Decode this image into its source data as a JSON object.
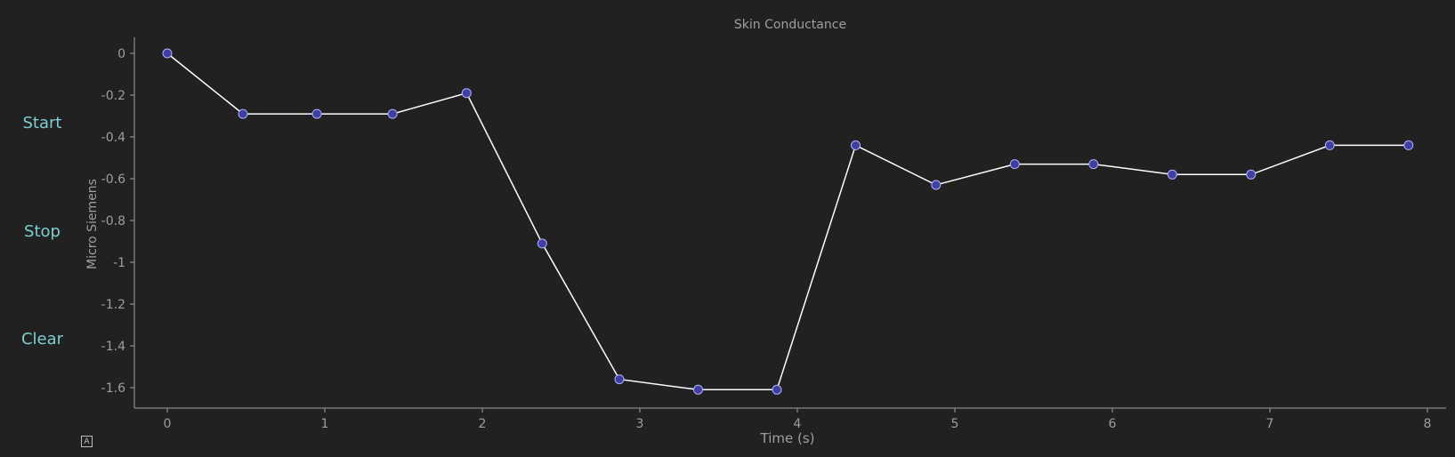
{
  "controls": {
    "start_label": "Start",
    "stop_label": "Stop",
    "clear_label": "Clear",
    "auto_scale_label": "A"
  },
  "colors": {
    "background": "#212121",
    "axis": "#9e9e9e",
    "text": "#9e9e9e",
    "line": "#ffffff",
    "marker_fill": "#3f3fa0",
    "marker_stroke": "#b0b0ff",
    "button_text": "#7ecfd0"
  },
  "chart_data": {
    "type": "line",
    "title": "Skin Conductance",
    "xlabel": "Time (s)",
    "ylabel": "Micro Siemens",
    "xlim": [
      -0.2,
      8.1
    ],
    "ylim": [
      -1.7,
      0.08
    ],
    "x_ticks": [
      0,
      1,
      2,
      3,
      4,
      5,
      6,
      7,
      8
    ],
    "y_ticks": [
      0,
      -0.2,
      -0.4,
      -0.6,
      -0.8,
      -1,
      -1.2,
      -1.4,
      -1.6
    ],
    "y_tick_labels": [
      "0",
      "-0.2",
      "-0.4",
      "-0.6",
      "-0.8",
      "-1",
      "-1.2",
      "-1.4",
      "-1.6"
    ],
    "grid": false,
    "series": [
      {
        "x": [
          0,
          0.48,
          0.95,
          1.43,
          1.9,
          2.38,
          2.87,
          3.37,
          3.87,
          4.37,
          4.88,
          5.38,
          5.88,
          6.38,
          6.88,
          7.38,
          7.88
        ],
        "values": [
          0,
          -0.29,
          -0.29,
          -0.29,
          -0.19,
          -0.91,
          -1.56,
          -1.61,
          -1.61,
          -0.44,
          -0.63,
          -0.53,
          -0.53,
          -0.58,
          -0.58,
          -0.44,
          -0.44
        ]
      }
    ]
  }
}
